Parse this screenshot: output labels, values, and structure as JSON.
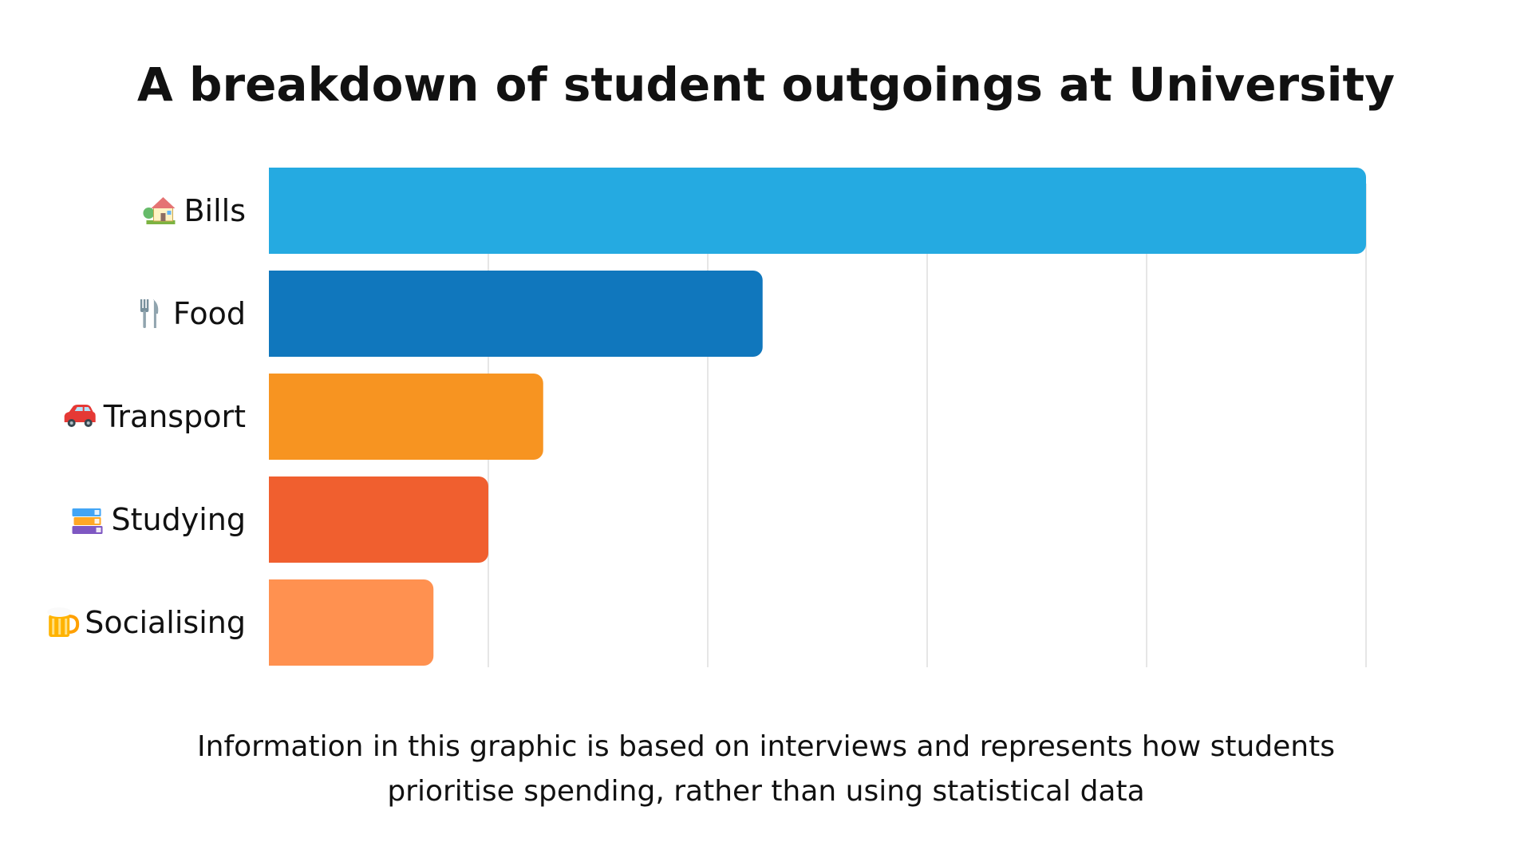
{
  "chart_data": {
    "type": "bar",
    "orientation": "horizontal",
    "title": "A breakdown of student outgoings at University",
    "categories": [
      "Bills",
      "Food",
      "Transport",
      "Studying",
      "Socialising"
    ],
    "category_icons": [
      "house-with-garden-icon",
      "fork-and-knife-icon",
      "car-icon",
      "books-icon",
      "beer-mug-icon"
    ],
    "values": [
      100,
      45,
      25,
      20,
      15
    ],
    "xlim": [
      0,
      100
    ],
    "grid": true,
    "gridline_count": 5,
    "x_tick_labels": false,
    "legend": "none",
    "colors": [
      "#25aae1",
      "#1077bd",
      "#f79421",
      "#f05f2f",
      "#ff9150"
    ],
    "gridline_color": "#dddddd"
  },
  "footnote": {
    "line1": "Information in this graphic is based on interviews and represents how students",
    "line2": "prioritise spending, rather than using statistical data"
  }
}
